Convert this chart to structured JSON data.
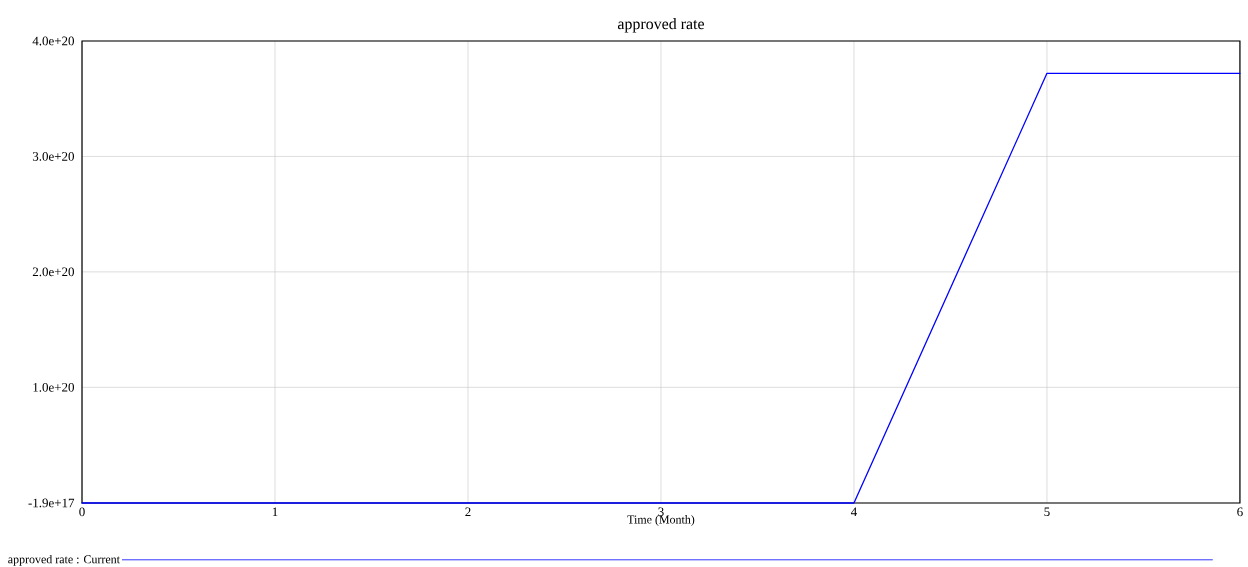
{
  "chart_data": {
    "type": "line",
    "title": "approved rate",
    "xlabel": "Time (Month)",
    "x": [
      0,
      4,
      5,
      6
    ],
    "series": [
      {
        "name": "approved rate : Current",
        "color": "#0000ff",
        "values": [
          -1.9e+17,
          -1.9e+17,
          3.72e+20,
          3.72e+20
        ]
      }
    ],
    "xlim": [
      0,
      6
    ],
    "xticks": [
      0,
      1,
      2,
      3,
      4,
      5,
      6
    ],
    "ylim": [
      -1.9e+17,
      4e+20
    ],
    "yticks": [
      {
        "value": -1.9e+17,
        "label": "-1.9e+17"
      },
      {
        "value": 1e+20,
        "label": "1.0e+20"
      },
      {
        "value": 2e+20,
        "label": "2.0e+20"
      },
      {
        "value": 3e+20,
        "label": "3.0e+20"
      },
      {
        "value": 4e+20,
        "label": "4.0e+20"
      }
    ],
    "grid": true,
    "legend": "bottom",
    "marker": "none",
    "line_style": "solid"
  }
}
